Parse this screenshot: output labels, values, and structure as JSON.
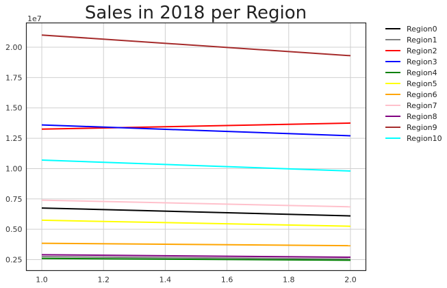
{
  "chart_data": {
    "type": "line",
    "title": "Sales in 2018 per Region",
    "xlabel": "",
    "ylabel": "",
    "y_scale_label": "1e7",
    "x": [
      1.0,
      2.0
    ],
    "xlim": [
      0.95,
      2.05
    ],
    "ylim": [
      1600000,
      22000000
    ],
    "x_ticks": [
      1.0,
      1.2,
      1.4,
      1.6,
      1.8,
      2.0
    ],
    "x_tick_labels": [
      "1.0",
      "1.2",
      "1.4",
      "1.6",
      "1.8",
      "2.0"
    ],
    "y_ticks": [
      2500000,
      5000000,
      7500000,
      10000000,
      12500000,
      15000000,
      17500000,
      20000000
    ],
    "y_tick_labels": [
      "0.25",
      "0.50",
      "0.75",
      "1.00",
      "1.25",
      "1.50",
      "1.75",
      "2.00"
    ],
    "grid": true,
    "legend_position": "outside-right",
    "series": [
      {
        "name": "Region0",
        "color": "#000000",
        "values": [
          6750000,
          6100000
        ]
      },
      {
        "name": "Region1",
        "color": "#808080",
        "values": [
          2750000,
          2550000
        ]
      },
      {
        "name": "Region2",
        "color": "#ff0000",
        "values": [
          13250000,
          13750000
        ]
      },
      {
        "name": "Region3",
        "color": "#0000ff",
        "values": [
          13600000,
          12700000
        ]
      },
      {
        "name": "Region4",
        "color": "#008000",
        "values": [
          2600000,
          2450000
        ]
      },
      {
        "name": "Region5",
        "color": "#ffff00",
        "values": [
          5750000,
          5250000
        ]
      },
      {
        "name": "Region6",
        "color": "#ffa500",
        "values": [
          3850000,
          3650000
        ]
      },
      {
        "name": "Region7",
        "color": "#ffc0cb",
        "values": [
          7400000,
          6850000
        ]
      },
      {
        "name": "Region8",
        "color": "#800080",
        "values": [
          2900000,
          2700000
        ]
      },
      {
        "name": "Region9",
        "color": "#a52a2a",
        "values": [
          21000000,
          19300000
        ]
      },
      {
        "name": "Region10",
        "color": "#00ffff",
        "values": [
          10700000,
          9800000
        ]
      }
    ]
  }
}
